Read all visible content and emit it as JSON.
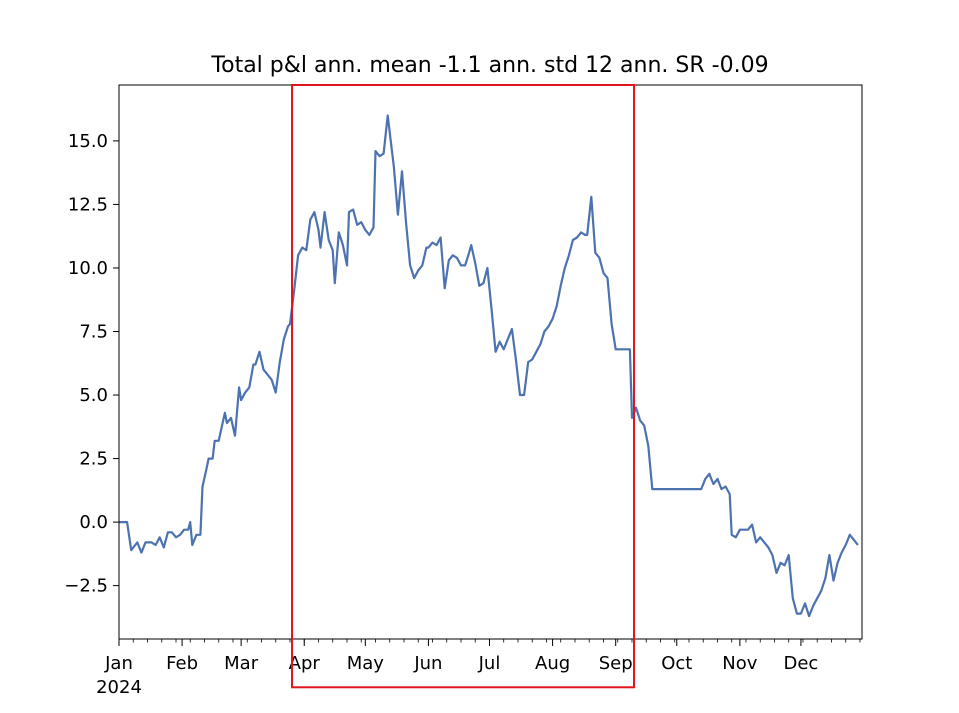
{
  "chart_data": {
    "type": "line",
    "title": "Total p&l ann. mean -1.1 ann. std 12 ann. SR -0.09",
    "xlabel": "",
    "ylabel": "",
    "x_start": "2024-01-01",
    "x_end": "2024-12-31",
    "ylim": [
      -4.6,
      17.2
    ],
    "grid": false,
    "legend": "none",
    "yticks": [
      -2.5,
      0.0,
      2.5,
      5.0,
      7.5,
      10.0,
      12.5,
      15.0
    ],
    "ytick_labels": [
      "−2.5",
      "0.0",
      "2.5",
      "5.0",
      "7.5",
      "10.0",
      "12.5",
      "15.0"
    ],
    "xticks": [
      {
        "date": "2024-01-01",
        "label": "Jan"
      },
      {
        "date": "2024-02-01",
        "label": "Feb"
      },
      {
        "date": "2024-03-01",
        "label": "Mar"
      },
      {
        "date": "2024-04-01",
        "label": "Apr"
      },
      {
        "date": "2024-05-01",
        "label": "May"
      },
      {
        "date": "2024-06-01",
        "label": "Jun"
      },
      {
        "date": "2024-07-01",
        "label": "Jul"
      },
      {
        "date": "2024-08-01",
        "label": "Aug"
      },
      {
        "date": "2024-09-01",
        "label": "Sep"
      },
      {
        "date": "2024-10-01",
        "label": "Oct"
      },
      {
        "date": "2024-11-01",
        "label": "Nov"
      },
      {
        "date": "2024-12-01",
        "label": "Dec"
      }
    ],
    "year_label": "2024",
    "series": [
      {
        "color": "#4c72b0",
        "points": [
          [
            "2024-01-01",
            0.0
          ],
          [
            "2024-01-05",
            0.0
          ],
          [
            "2024-01-07",
            -1.1
          ],
          [
            "2024-01-10",
            -0.8
          ],
          [
            "2024-01-12",
            -1.2
          ],
          [
            "2024-01-14",
            -0.8
          ],
          [
            "2024-01-17",
            -0.8
          ],
          [
            "2024-01-19",
            -0.9
          ],
          [
            "2024-01-21",
            -0.6
          ],
          [
            "2024-01-23",
            -1.0
          ],
          [
            "2024-01-25",
            -0.4
          ],
          [
            "2024-01-27",
            -0.4
          ],
          [
            "2024-01-29",
            -0.6
          ],
          [
            "2024-01-31",
            -0.5
          ],
          [
            "2024-02-02",
            -0.3
          ],
          [
            "2024-02-04",
            -0.3
          ],
          [
            "2024-02-05",
            0.0
          ],
          [
            "2024-02-06",
            -0.9
          ],
          [
            "2024-02-08",
            -0.5
          ],
          [
            "2024-02-10",
            -0.5
          ],
          [
            "2024-02-11",
            1.4
          ],
          [
            "2024-02-13",
            2.1
          ],
          [
            "2024-02-14",
            2.5
          ],
          [
            "2024-02-16",
            2.5
          ],
          [
            "2024-02-17",
            3.2
          ],
          [
            "2024-02-19",
            3.2
          ],
          [
            "2024-02-22",
            4.3
          ],
          [
            "2024-02-23",
            3.9
          ],
          [
            "2024-02-25",
            4.1
          ],
          [
            "2024-02-27",
            3.4
          ],
          [
            "2024-02-29",
            5.3
          ],
          [
            "2024-03-01",
            4.8
          ],
          [
            "2024-03-03",
            5.1
          ],
          [
            "2024-03-05",
            5.3
          ],
          [
            "2024-03-07",
            6.2
          ],
          [
            "2024-03-08",
            6.2
          ],
          [
            "2024-03-10",
            6.7
          ],
          [
            "2024-03-12",
            6.0
          ],
          [
            "2024-03-14",
            5.8
          ],
          [
            "2024-03-16",
            5.6
          ],
          [
            "2024-03-18",
            5.1
          ],
          [
            "2024-03-20",
            6.3
          ],
          [
            "2024-03-22",
            7.2
          ],
          [
            "2024-03-24",
            7.7
          ],
          [
            "2024-03-25",
            7.8
          ],
          [
            "2024-03-27",
            9.1
          ],
          [
            "2024-03-29",
            10.5
          ],
          [
            "2024-03-31",
            10.8
          ],
          [
            "2024-04-02",
            10.7
          ],
          [
            "2024-04-04",
            11.9
          ],
          [
            "2024-04-06",
            12.2
          ],
          [
            "2024-04-08",
            11.5
          ],
          [
            "2024-04-09",
            10.8
          ],
          [
            "2024-04-11",
            12.2
          ],
          [
            "2024-04-13",
            11.1
          ],
          [
            "2024-04-15",
            10.7
          ],
          [
            "2024-04-16",
            9.4
          ],
          [
            "2024-04-18",
            11.4
          ],
          [
            "2024-04-20",
            10.9
          ],
          [
            "2024-04-22",
            10.1
          ],
          [
            "2024-04-23",
            12.2
          ],
          [
            "2024-04-25",
            12.3
          ],
          [
            "2024-04-27",
            11.7
          ],
          [
            "2024-04-29",
            11.8
          ],
          [
            "2024-05-01",
            11.5
          ],
          [
            "2024-05-03",
            11.3
          ],
          [
            "2024-05-05",
            11.6
          ],
          [
            "2024-05-06",
            14.6
          ],
          [
            "2024-05-08",
            14.4
          ],
          [
            "2024-05-10",
            14.5
          ],
          [
            "2024-05-12",
            16.0
          ],
          [
            "2024-05-15",
            14.0
          ],
          [
            "2024-05-17",
            12.1
          ],
          [
            "2024-05-19",
            13.8
          ],
          [
            "2024-05-21",
            11.8
          ],
          [
            "2024-05-23",
            10.1
          ],
          [
            "2024-05-25",
            9.6
          ],
          [
            "2024-05-27",
            9.9
          ],
          [
            "2024-05-29",
            10.1
          ],
          [
            "2024-05-31",
            10.8
          ],
          [
            "2024-06-01",
            10.8
          ],
          [
            "2024-06-03",
            11.0
          ],
          [
            "2024-06-05",
            10.9
          ],
          [
            "2024-06-07",
            11.2
          ],
          [
            "2024-06-09",
            9.2
          ],
          [
            "2024-06-11",
            10.3
          ],
          [
            "2024-06-13",
            10.5
          ],
          [
            "2024-06-15",
            10.4
          ],
          [
            "2024-06-17",
            10.1
          ],
          [
            "2024-06-19",
            10.1
          ],
          [
            "2024-06-21",
            10.6
          ],
          [
            "2024-06-22",
            10.9
          ],
          [
            "2024-06-24",
            10.2
          ],
          [
            "2024-06-26",
            9.3
          ],
          [
            "2024-06-28",
            9.4
          ],
          [
            "2024-06-30",
            10.0
          ],
          [
            "2024-07-02",
            8.4
          ],
          [
            "2024-07-04",
            6.7
          ],
          [
            "2024-07-06",
            7.1
          ],
          [
            "2024-07-08",
            6.8
          ],
          [
            "2024-07-10",
            7.2
          ],
          [
            "2024-07-12",
            7.6
          ],
          [
            "2024-07-14",
            6.4
          ],
          [
            "2024-07-16",
            5.0
          ],
          [
            "2024-07-18",
            5.0
          ],
          [
            "2024-07-20",
            6.3
          ],
          [
            "2024-07-22",
            6.4
          ],
          [
            "2024-07-24",
            6.7
          ],
          [
            "2024-07-26",
            7.0
          ],
          [
            "2024-07-28",
            7.5
          ],
          [
            "2024-07-30",
            7.7
          ],
          [
            "2024-08-01",
            8.0
          ],
          [
            "2024-08-03",
            8.5
          ],
          [
            "2024-08-05",
            9.3
          ],
          [
            "2024-08-07",
            10.0
          ],
          [
            "2024-08-09",
            10.5
          ],
          [
            "2024-08-11",
            11.1
          ],
          [
            "2024-08-13",
            11.2
          ],
          [
            "2024-08-15",
            11.4
          ],
          [
            "2024-08-17",
            11.3
          ],
          [
            "2024-08-18",
            11.3
          ],
          [
            "2024-08-20",
            12.8
          ],
          [
            "2024-08-22",
            10.6
          ],
          [
            "2024-08-24",
            10.4
          ],
          [
            "2024-08-26",
            9.8
          ],
          [
            "2024-08-28",
            9.6
          ],
          [
            "2024-08-30",
            7.8
          ],
          [
            "2024-09-01",
            6.8
          ],
          [
            "2024-09-02",
            6.8
          ],
          [
            "2024-09-04",
            6.8
          ],
          [
            "2024-09-06",
            6.8
          ],
          [
            "2024-09-08",
            6.8
          ],
          [
            "2024-09-09",
            4.1
          ],
          [
            "2024-09-11",
            4.5
          ],
          [
            "2024-09-13",
            4.0
          ],
          [
            "2024-09-15",
            3.8
          ],
          [
            "2024-09-17",
            3.0
          ],
          [
            "2024-09-19",
            1.3
          ],
          [
            "2024-09-21",
            1.3
          ],
          [
            "2024-09-23",
            1.3
          ],
          [
            "2024-09-25",
            1.3
          ],
          [
            "2024-09-27",
            1.3
          ],
          [
            "2024-09-29",
            1.3
          ],
          [
            "2024-10-01",
            1.3
          ],
          [
            "2024-10-03",
            1.3
          ],
          [
            "2024-10-05",
            1.3
          ],
          [
            "2024-10-07",
            1.3
          ],
          [
            "2024-10-09",
            1.3
          ],
          [
            "2024-10-11",
            1.3
          ],
          [
            "2024-10-13",
            1.3
          ],
          [
            "2024-10-15",
            1.7
          ],
          [
            "2024-10-17",
            1.9
          ],
          [
            "2024-10-19",
            1.5
          ],
          [
            "2024-10-21",
            1.7
          ],
          [
            "2024-10-23",
            1.3
          ],
          [
            "2024-10-25",
            1.4
          ],
          [
            "2024-10-27",
            1.1
          ],
          [
            "2024-10-28",
            -0.5
          ],
          [
            "2024-10-30",
            -0.6
          ],
          [
            "2024-11-01",
            -0.3
          ],
          [
            "2024-11-03",
            -0.3
          ],
          [
            "2024-11-05",
            -0.3
          ],
          [
            "2024-11-07",
            -0.1
          ],
          [
            "2024-11-09",
            -0.8
          ],
          [
            "2024-11-11",
            -0.6
          ],
          [
            "2024-11-13",
            -0.8
          ],
          [
            "2024-11-15",
            -1.0
          ],
          [
            "2024-11-17",
            -1.3
          ],
          [
            "2024-11-19",
            -2.0
          ],
          [
            "2024-11-21",
            -1.6
          ],
          [
            "2024-11-23",
            -1.7
          ],
          [
            "2024-11-25",
            -1.3
          ],
          [
            "2024-11-27",
            -3.0
          ],
          [
            "2024-11-29",
            -3.6
          ],
          [
            "2024-12-01",
            -3.6
          ],
          [
            "2024-12-03",
            -3.2
          ],
          [
            "2024-12-05",
            -3.7
          ],
          [
            "2024-12-07",
            -3.3
          ],
          [
            "2024-12-09",
            -3.0
          ],
          [
            "2024-12-11",
            -2.7
          ],
          [
            "2024-12-13",
            -2.2
          ],
          [
            "2024-12-15",
            -1.3
          ],
          [
            "2024-12-17",
            -2.3
          ],
          [
            "2024-12-19",
            -1.6
          ],
          [
            "2024-12-21",
            -1.2
          ],
          [
            "2024-12-23",
            -0.9
          ],
          [
            "2024-12-25",
            -0.5
          ],
          [
            "2024-12-27",
            -0.7
          ],
          [
            "2024-12-29",
            -0.9
          ]
        ]
      }
    ],
    "highlight_box": {
      "x_from": "2024-03-26",
      "x_to": "2024-09-10",
      "y_from": -6.5,
      "y_to": 17.2,
      "color": "#e0141e"
    }
  }
}
